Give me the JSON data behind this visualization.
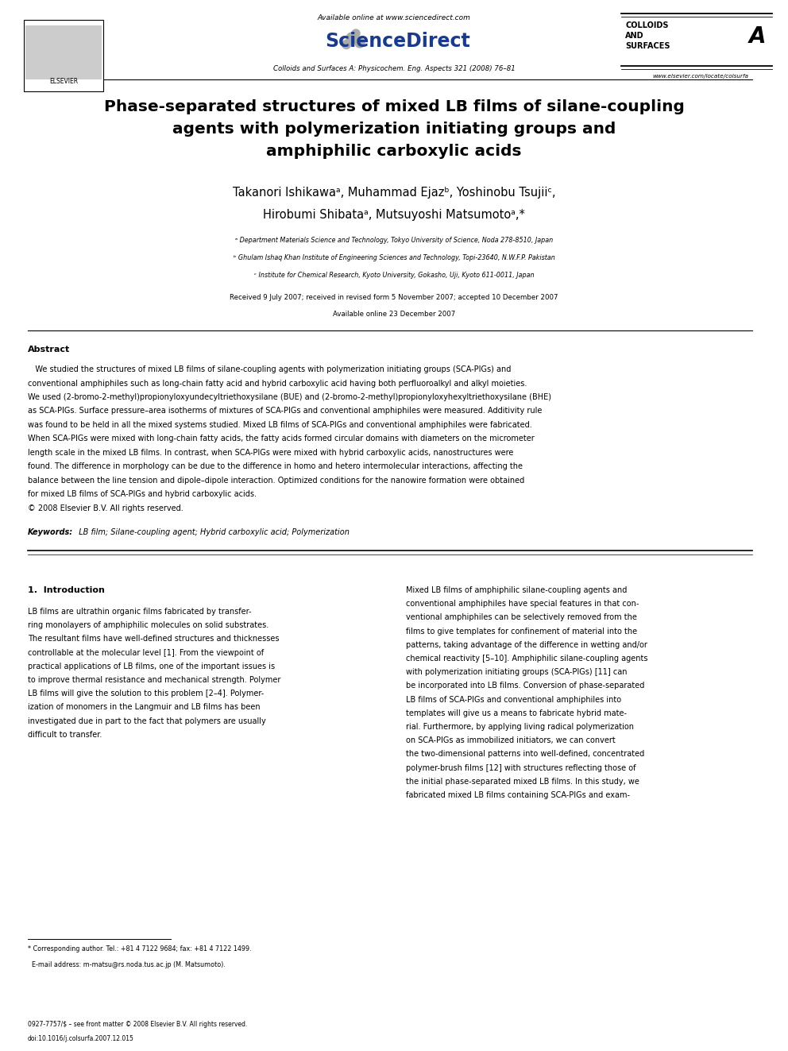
{
  "bg_color": "#ffffff",
  "page_width": 9.92,
  "page_height": 13.23,
  "header_available": "Available online at www.sciencedirect.com",
  "header_journal_info": "Colloids and Surfaces A: Physicochem. Eng. Aspects 321 (2008) 76–81",
  "header_url": "www.elsevier.com/locate/colsurfa",
  "colloids_line1": "COLLOIDS",
  "colloids_line2": "AND",
  "colloids_line3": "SURFACES",
  "colloids_letter": "A",
  "elsevier_label": "ELSEVIER",
  "title_line1": "Phase-separated structures of mixed LB films of silane-coupling",
  "title_line2": "agents with polymerization initiating groups and",
  "title_line3": "amphiphilic carboxylic acids",
  "author_line1": "Takanori Ishikawaᵃ, Muhammad Ejazᵇ, Yoshinobu Tsujiiᶜ,",
  "author_line2": "Hirobumi Shibataᵃ, Mutsuyoshi Matsumotoᵃ,*",
  "affil1": "ᵃ Department Materials Science and Technology, Tokyo University of Science, Noda 278-8510, Japan",
  "affil2": "ᵇ Ghulam Ishaq Khan Institute of Engineering Sciences and Technology, Topi-23640, N.W.F.P. Pakistan",
  "affil3": "ᶜ Institute for Chemical Research, Kyoto University, Gokasho, Uji, Kyoto 611-0011, Japan",
  "dates_line1": "Received 9 July 2007; received in revised form 5 November 2007; accepted 10 December 2007",
  "dates_line2": "Available online 23 December 2007",
  "abstract_heading": "Abstract",
  "abstract_para": "   We studied the structures of mixed LB films of silane-coupling agents with polymerization initiating groups (SCA-PIGs) and conventional amphiphiles such as long-chain fatty acid and hybrid carboxylic acid having both perfluoroalkyl and alkyl moieties. We used (2-bromo-2-methyl)propionyloxyundecyltriethoxysilane (BUE) and (2-bromo-2-methyl)propionyloxyhexyltriethoxysilane (BHE) as SCA-PIGs. Surface pressure–area isotherms of mixtures of SCA-PIGs and conventional amphiphiles were measured. Additivity rule was found to be held in all the mixed systems studied. Mixed LB films of SCA-PIGs and conventional amphiphiles were fabricated. When SCA-PIGs were mixed with long-chain fatty acids, the fatty acids formed circular domains with diameters on the micrometer length scale in the mixed LB films. In contrast, when SCA-PIGs were mixed with hybrid carboxylic acids, nanostructures were found. The difference in morphology can be due to the difference in homo and hetero intermolecular interactions, affecting the balance between the line tension and dipole–dipole interaction. Optimized conditions for the nanowire formation were obtained for mixed LB films of SCA-PIGs and hybrid carboxylic acids.",
  "abstract_copy": "© 2008 Elsevier B.V. All rights reserved.",
  "keywords_label": "Keywords:",
  "keywords_text": "  LB film; Silane-coupling agent; Hybrid carboxylic acid; Polymerization",
  "intro_heading": "1.  Introduction",
  "intro_col1_lines": [
    "LB films are ultrathin organic films fabricated by transfer-",
    "ring monolayers of amphiphilic molecules on solid substrates.",
    "The resultant films have well-defined structures and thicknesses",
    "controllable at the molecular level [1]. From the viewpoint of",
    "practical applications of LB films, one of the important issues is",
    "to improve thermal resistance and mechanical strength. Polymer",
    "LB films will give the solution to this problem [2–4]. Polymer-",
    "ization of monomers in the Langmuir and LB films has been",
    "investigated due in part to the fact that polymers are usually",
    "difficult to transfer."
  ],
  "intro_col2_lines": [
    "Mixed LB films of amphiphilic silane-coupling agents and",
    "conventional amphiphiles have special features in that con-",
    "ventional amphiphiles can be selectively removed from the",
    "films to give templates for confinement of material into the",
    "patterns, taking advantage of the difference in wetting and/or",
    "chemical reactivity [5–10]. Amphiphilic silane-coupling agents",
    "with polymerization initiating groups (SCA-PIGs) [11] can",
    "be incorporated into LB films. Conversion of phase-separated",
    "LB films of SCA-PIGs and conventional amphiphiles into",
    "templates will give us a means to fabricate hybrid mate-",
    "rial. Furthermore, by applying living radical polymerization",
    "on SCA-PIGs as immobilized initiators, we can convert",
    "the two-dimensional patterns into well-defined, concentrated",
    "polymer-brush films [12] with structures reflecting those of",
    "the initial phase-separated mixed LB films. In this study, we",
    "fabricated mixed LB films containing SCA-PIGs and exam-"
  ],
  "footnote_line1": "* Corresponding author. Tel.: +81 4 7122 9684; fax: +81 4 7122 1499.",
  "footnote_line2": "  E-mail address: m-matsu@rs.noda.tus.ac.jp (M. Matsumoto).",
  "footer_line1": "0927-7757/$ – see front matter © 2008 Elsevier B.V. All rights reserved.",
  "footer_line2": "doi:10.1016/j.colsurfa.2007.12.015"
}
